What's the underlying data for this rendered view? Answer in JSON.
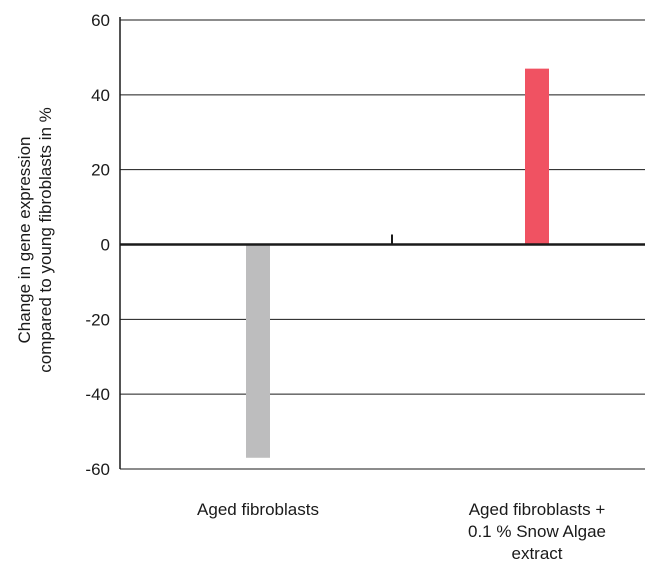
{
  "chart_data": {
    "type": "bar",
    "categories": [
      [
        "Aged fibroblasts"
      ],
      [
        "Aged fibroblasts +",
        "0.1 % Snow Algae",
        "extract"
      ]
    ],
    "values": [
      -57,
      47
    ],
    "bar_colors": [
      "#bdbdbe",
      "#f05262"
    ],
    "ylabel_lines": [
      "Change in gene expression",
      "compared to young fibroblasts in %"
    ],
    "ylim": [
      -60,
      60
    ],
    "yticks": [
      60,
      40,
      20,
      0,
      -20,
      -40,
      -60
    ],
    "grid": true,
    "legend": "none"
  }
}
